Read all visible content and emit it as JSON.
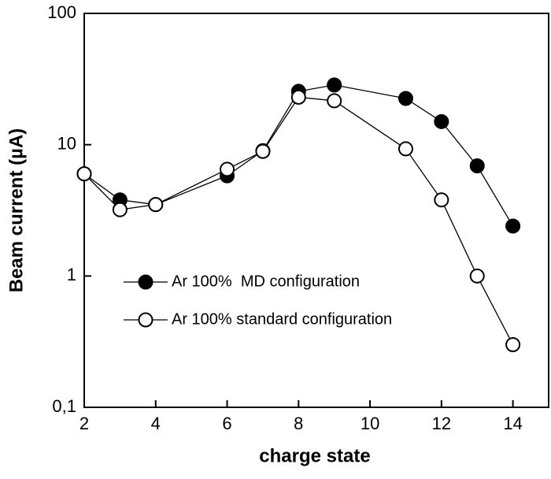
{
  "chart_data": {
    "type": "line",
    "xlabel": "charge state",
    "ylabel": "Beam current (µA)",
    "xlim": [
      2,
      15
    ],
    "xticks": [
      2,
      4,
      6,
      8,
      10,
      12,
      14
    ],
    "ylim": [
      0.1,
      100
    ],
    "yticks": [
      {
        "value": 0.1,
        "label": "0,1"
      },
      1,
      10,
      100
    ],
    "yscale": "log",
    "series": [
      {
        "name": "Ar 100%  MD configuration",
        "color": "#000000",
        "x": [
          2,
          3,
          4,
          6,
          7,
          8,
          9,
          11,
          12,
          13,
          14
        ],
        "values": [
          6.0,
          3.8,
          3.5,
          5.8,
          9.0,
          25.5,
          28.5,
          22.5,
          15,
          6.9,
          2.4
        ]
      },
      {
        "name": "Ar 100% standard configuration",
        "color": "#ffffff",
        "x": [
          2,
          3,
          4,
          6,
          7,
          8,
          9,
          11,
          12,
          13,
          14
        ],
        "values": [
          6.0,
          3.2,
          3.5,
          6.5,
          8.9,
          23,
          21.6,
          9.3,
          3.8,
          1.0,
          0.3
        ]
      }
    ]
  }
}
